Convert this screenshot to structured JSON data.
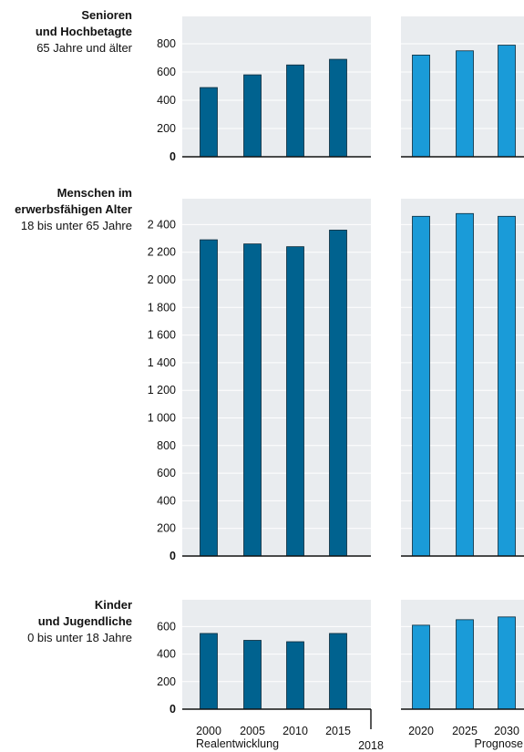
{
  "colors": {
    "realentwicklung": "#00628f",
    "prognose": "#1a9bd8",
    "panel_bg": "#e9ecef"
  },
  "footer": {
    "hist_label": "Realentwicklung",
    "year_label": "2018",
    "forecast_label": "Prognose"
  },
  "chart_data": [
    {
      "type": "bar",
      "title": "Senioren",
      "title2": "und Hochbetagte",
      "subtitle": "65 Jahre und älter",
      "ylim": [
        0,
        900
      ],
      "yticks": [
        0,
        200,
        400,
        600,
        800
      ],
      "ytick_labels": [
        "0",
        "200",
        "400",
        "600",
        "800"
      ],
      "hist": {
        "categories": [
          "2000",
          "2005",
          "2010",
          "2015"
        ],
        "values": [
          490,
          580,
          650,
          690
        ]
      },
      "forecast": {
        "categories": [
          "2020",
          "2025",
          "2030"
        ],
        "values": [
          720,
          750,
          790
        ]
      }
    },
    {
      "type": "bar",
      "title": "Menschen im",
      "title2": "erwerbsfähigen Alter",
      "subtitle": "18 bis unter 65 Jahre",
      "ylim": [
        0,
        2600
      ],
      "yticks": [
        0,
        200,
        400,
        600,
        800,
        1000,
        1200,
        1400,
        1600,
        1800,
        2000,
        2200,
        2400
      ],
      "ytick_labels": [
        "0",
        "200",
        "400",
        "600",
        "800",
        "1 000",
        "1 200",
        "1 400",
        "1 600",
        "1 800",
        "2 000",
        "2 200",
        "2 400"
      ],
      "hist": {
        "categories": [
          "2000",
          "2005",
          "2010",
          "2015"
        ],
        "values": [
          2290,
          2260,
          2240,
          2360
        ]
      },
      "forecast": {
        "categories": [
          "2020",
          "2025",
          "2030"
        ],
        "values": [
          2460,
          2480,
          2460
        ]
      }
    },
    {
      "type": "bar",
      "title": "Kinder",
      "title2": "und Jugendliche",
      "subtitle": "0 bis unter 18 Jahre",
      "ylim": [
        0,
        800
      ],
      "yticks": [
        0,
        200,
        400,
        600
      ],
      "ytick_labels": [
        "0",
        "200",
        "400",
        "600"
      ],
      "hist": {
        "categories": [
          "2000",
          "2005",
          "2010",
          "2015"
        ],
        "values": [
          550,
          500,
          490,
          550
        ]
      },
      "forecast": {
        "categories": [
          "2020",
          "2025",
          "2030"
        ],
        "values": [
          610,
          650,
          670
        ]
      }
    }
  ]
}
